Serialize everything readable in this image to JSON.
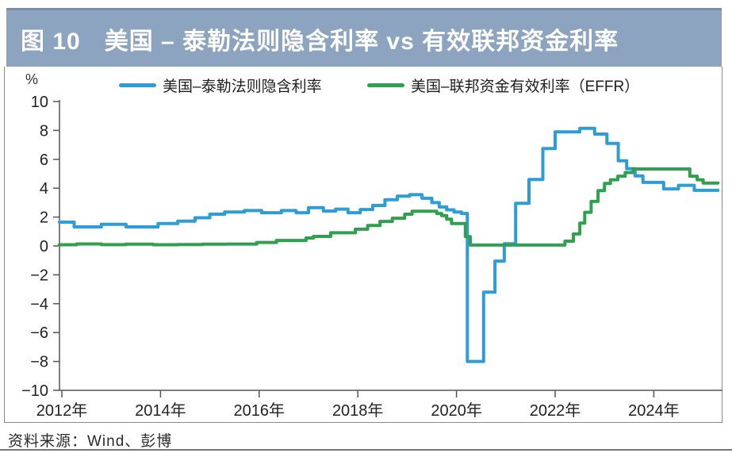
{
  "title_bar": {
    "figure_number": "图 10",
    "title": "美国 – 泰勒法则隐含利率 vs 有效联邦资金利率",
    "background_color": "#8CA4C0",
    "text_color": "#FFFFFF"
  },
  "unit_label": "%",
  "legend": {
    "items": [
      {
        "label": "美国–泰勒法则隐含利率",
        "color": "#2E9CD6"
      },
      {
        "label": "美国–联邦资金有效利率（EFFR）",
        "color": "#2FA04F"
      }
    ]
  },
  "source_note": "资料来源：Wind、彭博",
  "chart_data": {
    "type": "line",
    "subtype": "step",
    "title": "图 10 美国 – 泰勒法则隐含利率 vs 有效联邦资金利率",
    "xlabel": "",
    "ylabel": "%",
    "ylim": [
      -10,
      10
    ],
    "xlim": [
      2011.95,
      2025.45
    ],
    "x_end": 2025.3,
    "grid": false,
    "legend_position": "top",
    "axis_color": "#555555",
    "tick_label_color": "#222222",
    "y_tick_values": [
      10,
      8,
      6,
      4,
      2,
      0,
      -2,
      -4,
      -6,
      -8,
      -10
    ],
    "y_tick_labels": [
      "10",
      "8",
      "6",
      "4",
      "2",
      "0",
      "−2",
      "−4",
      "−6",
      "−8",
      "−10"
    ],
    "x_tick_values": [
      2012,
      2014,
      2016,
      2018,
      2020,
      2022,
      2024
    ],
    "x_tick_labels": [
      "2012年",
      "2014年",
      "2016年",
      "2018年",
      "2020年",
      "2022年",
      "2024年"
    ],
    "series": [
      {
        "id": "taylor-rule",
        "name": "美国–泰勒法则隐含利率",
        "color": "#2E9CD6",
        "step_points": [
          [
            2011.95,
            1.65
          ],
          [
            2012.25,
            1.32
          ],
          [
            2012.8,
            1.5
          ],
          [
            2013.3,
            1.32
          ],
          [
            2013.95,
            1.55
          ],
          [
            2014.35,
            1.72
          ],
          [
            2014.7,
            1.95
          ],
          [
            2015.0,
            2.2
          ],
          [
            2015.3,
            2.35
          ],
          [
            2015.7,
            2.45
          ],
          [
            2016.05,
            2.3
          ],
          [
            2016.45,
            2.45
          ],
          [
            2016.75,
            2.3
          ],
          [
            2017.0,
            2.65
          ],
          [
            2017.3,
            2.42
          ],
          [
            2017.55,
            2.55
          ],
          [
            2017.8,
            2.3
          ],
          [
            2018.05,
            2.52
          ],
          [
            2018.3,
            2.8
          ],
          [
            2018.55,
            3.2
          ],
          [
            2018.8,
            3.45
          ],
          [
            2019.05,
            3.55
          ],
          [
            2019.3,
            3.3
          ],
          [
            2019.5,
            3.0
          ],
          [
            2019.65,
            2.7
          ],
          [
            2019.8,
            2.5
          ],
          [
            2019.95,
            2.35
          ],
          [
            2020.1,
            2.25
          ],
          [
            2020.22,
            -8.0
          ],
          [
            2020.55,
            -3.2
          ],
          [
            2020.78,
            -1.05
          ],
          [
            2020.97,
            0.15
          ],
          [
            2021.2,
            2.95
          ],
          [
            2021.47,
            4.6
          ],
          [
            2021.75,
            6.75
          ],
          [
            2022.0,
            7.9
          ],
          [
            2022.5,
            8.15
          ],
          [
            2022.8,
            7.75
          ],
          [
            2023.05,
            7.1
          ],
          [
            2023.28,
            5.9
          ],
          [
            2023.45,
            5.35
          ],
          [
            2023.62,
            4.85
          ],
          [
            2023.78,
            4.4
          ],
          [
            2024.2,
            3.95
          ],
          [
            2024.5,
            4.2
          ],
          [
            2024.82,
            3.85
          ]
        ]
      },
      {
        "id": "effr",
        "name": "美国–联邦资金有效利率（EFFR）",
        "color": "#2FA04F",
        "step_points": [
          [
            2011.95,
            0.08
          ],
          [
            2012.3,
            0.14
          ],
          [
            2012.8,
            0.09
          ],
          [
            2013.3,
            0.12
          ],
          [
            2013.85,
            0.08
          ],
          [
            2014.35,
            0.1
          ],
          [
            2014.85,
            0.12
          ],
          [
            2015.35,
            0.13
          ],
          [
            2015.95,
            0.24
          ],
          [
            2016.35,
            0.38
          ],
          [
            2016.95,
            0.55
          ],
          [
            2017.1,
            0.66
          ],
          [
            2017.45,
            0.91
          ],
          [
            2017.95,
            1.16
          ],
          [
            2018.2,
            1.42
          ],
          [
            2018.45,
            1.7
          ],
          [
            2018.7,
            1.92
          ],
          [
            2018.95,
            2.2
          ],
          [
            2019.1,
            2.4
          ],
          [
            2019.6,
            2.25
          ],
          [
            2019.7,
            2.1
          ],
          [
            2019.8,
            1.85
          ],
          [
            2019.9,
            1.55
          ],
          [
            2020.18,
            0.65
          ],
          [
            2020.28,
            0.06
          ],
          [
            2022.2,
            0.33
          ],
          [
            2022.37,
            0.83
          ],
          [
            2022.5,
            1.58
          ],
          [
            2022.6,
            2.33
          ],
          [
            2022.73,
            3.08
          ],
          [
            2022.87,
            3.83
          ],
          [
            2023.0,
            4.33
          ],
          [
            2023.12,
            4.58
          ],
          [
            2023.27,
            4.83
          ],
          [
            2023.42,
            5.08
          ],
          [
            2023.58,
            5.33
          ],
          [
            2024.73,
            4.83
          ],
          [
            2024.88,
            4.58
          ],
          [
            2025.0,
            4.35
          ]
        ]
      }
    ]
  }
}
